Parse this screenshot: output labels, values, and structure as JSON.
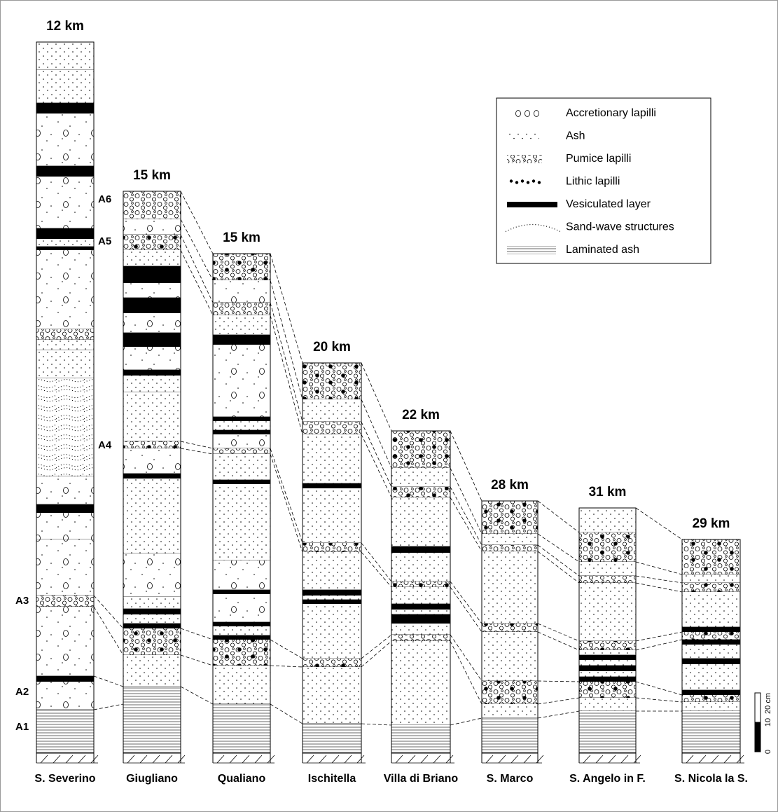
{
  "columns": [
    {
      "distance": "12 km",
      "name": "S. Severino"
    },
    {
      "distance": "15 km",
      "name": "Giugliano"
    },
    {
      "distance": "15 km",
      "name": "Qualiano"
    },
    {
      "distance": "20 km",
      "name": "Ischitella"
    },
    {
      "distance": "22 km",
      "name": "Villa di Briano"
    },
    {
      "distance": "28 km",
      "name": "S. Marco"
    },
    {
      "distance": "31 km",
      "name": "S. Angelo in F."
    },
    {
      "distance": "29 km",
      "name": "S. Nicola la S."
    }
  ],
  "unit_labels": [
    "A1",
    "A2",
    "A3",
    "A4",
    "A5",
    "A6"
  ],
  "legend": [
    "Accretionary lapilli",
    "Ash",
    "Pumice lapilli",
    "Lithic lapilli",
    "Vesiculated layer",
    "Sand-wave structures",
    "Laminated ash"
  ],
  "scale": {
    "labels": [
      "0",
      "10",
      "20 cm"
    ]
  }
}
